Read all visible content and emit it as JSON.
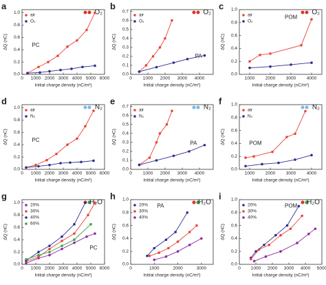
{
  "chart_data": [
    {
      "type": "scatter",
      "panel": "a",
      "material": "PC",
      "gas": "O₂",
      "xlabel": "Initial charge density (nC/m²)",
      "ylabel": "ΔQ (nC)",
      "xlim": [
        0,
        6000
      ],
      "xticks": [
        0,
        1000,
        2000,
        3000,
        4000,
        5000,
        6000
      ],
      "ylim": [
        0,
        1.05
      ],
      "yticks": [
        {
          "value": 0,
          "label": "0.0"
        },
        0.2,
        0.4,
        0.6,
        0.8,
        {
          "value": 1,
          "label": "1.0"
        }
      ],
      "series": [
        {
          "name": "air",
          "color": "#e8443a",
          "x": [
            400,
            1200,
            1900,
            2600,
            3300,
            4000,
            4700,
            5300
          ],
          "values": [
            0.02,
            0.12,
            0.2,
            0.3,
            0.45,
            0.55,
            0.72,
            1.0
          ]
        },
        {
          "name": "O₂",
          "color": "#2d2f8f",
          "x": [
            400,
            1300,
            2000,
            2800,
            3600,
            4400,
            5300
          ],
          "values": [
            0.02,
            0.03,
            0.05,
            0.07,
            0.09,
            0.12,
            0.14
          ]
        }
      ]
    },
    {
      "type": "scatter",
      "panel": "b",
      "material": "PA",
      "gas": "O₂",
      "xlabel": "Initial charge density (nC/m²)",
      "ylabel": "ΔQ (nC)",
      "xlim": [
        0,
        4800
      ],
      "xticks": [
        0,
        1000,
        2000,
        3000,
        4000
      ],
      "ylim": [
        0,
        0.72
      ],
      "yticks": [
        {
          "value": 0,
          "label": "0.0"
        },
        0.1,
        0.2,
        0.3,
        0.4,
        0.5,
        0.6,
        0.7
      ],
      "series": [
        {
          "name": "air",
          "color": "#e8443a",
          "x": [
            500,
            900,
            1300,
            1700,
            2000,
            2400
          ],
          "values": [
            0.03,
            0.1,
            0.2,
            0.3,
            0.4,
            0.6
          ]
        },
        {
          "name": "O₂",
          "color": "#2d2f8f",
          "x": [
            500,
            1500,
            2500,
            3300,
            4300
          ],
          "values": [
            0.03,
            0.08,
            0.13,
            0.17,
            0.21
          ]
        }
      ]
    },
    {
      "type": "scatter",
      "panel": "c",
      "material": "POM",
      "gas": "O₂",
      "xlabel": "Initial charge density (nC/m²)",
      "ylabel": "ΔQ (nC)",
      "xlim": [
        500,
        4500
      ],
      "xticks": [
        1000,
        2000,
        3000,
        4000
      ],
      "ylim": [
        0,
        1.0
      ],
      "yticks": [
        {
          "value": 0,
          "label": "0.0"
        },
        0.2,
        0.4,
        0.6,
        0.8,
        {
          "value": 1,
          "label": "1.0"
        }
      ],
      "series": [
        {
          "name": "air",
          "color": "#e8443a",
          "x": [
            1000,
            1500,
            2000,
            3500,
            4000
          ],
          "values": [
            0.2,
            0.3,
            0.32,
            0.45,
            0.85
          ]
        },
        {
          "name": "O₂",
          "color": "#2d2f8f",
          "x": [
            1000,
            2000,
            3000,
            4000
          ],
          "values": [
            0.1,
            0.12,
            0.15,
            0.18
          ]
        }
      ]
    },
    {
      "type": "scatter",
      "panel": "d",
      "material": "PC",
      "gas": "N₂",
      "xlabel": "Initial charge density (nC/m²)",
      "ylabel": "ΔQ (nC)",
      "xlim": [
        0,
        6000
      ],
      "xticks": [
        0,
        1000,
        2000,
        3000,
        4000,
        5000,
        6000
      ],
      "ylim": [
        0,
        1.05
      ],
      "yticks": [
        {
          "value": 0,
          "label": "0.0"
        },
        0.2,
        0.4,
        0.6,
        0.8,
        {
          "value": 1,
          "label": "1.0"
        }
      ],
      "series": [
        {
          "name": "air",
          "color": "#e8443a",
          "x": [
            300,
            1000,
            1800,
            2500,
            3300,
            4000,
            4600,
            5200
          ],
          "values": [
            0.03,
            0.07,
            0.15,
            0.25,
            0.4,
            0.5,
            0.7,
            0.95
          ]
        },
        {
          "name": "N₂",
          "color": "#2d2f8f",
          "x": [
            300,
            1200,
            2000,
            2800,
            3500,
            4300,
            5200
          ],
          "values": [
            0.03,
            0.05,
            0.07,
            0.1,
            0.11,
            0.12,
            0.14
          ]
        }
      ]
    },
    {
      "type": "scatter",
      "panel": "e",
      "material": "PA",
      "gas": "N₂",
      "xlabel": "Initial charge density (nC/m²)",
      "ylabel": "ΔQ (nC)",
      "xlim": [
        0,
        4800
      ],
      "xticks": [
        0,
        1000,
        2000,
        3000,
        4000
      ],
      "ylim": [
        0,
        0.72
      ],
      "yticks": [
        {
          "value": 0,
          "label": "0.0"
        },
        0.1,
        0.2,
        0.3,
        0.4,
        0.5,
        0.6,
        0.7
      ],
      "series": [
        {
          "name": "air",
          "color": "#e8443a",
          "x": [
            500,
            1100,
            1500,
            1700,
            2100,
            2400
          ],
          "values": [
            0.05,
            0.13,
            0.3,
            0.4,
            0.5,
            0.65
          ]
        },
        {
          "name": "N₂",
          "color": "#2d2f8f",
          "x": [
            500,
            1500,
            2500,
            3400,
            4300
          ],
          "values": [
            0.05,
            0.1,
            0.15,
            0.2,
            0.27
          ]
        }
      ]
    },
    {
      "type": "scatter",
      "panel": "f",
      "material": "POM",
      "gas": "N₂",
      "xlabel": "Initial charge density (nC/m²)",
      "ylabel": "ΔQ (nC)",
      "xlim": [
        500,
        4500
      ],
      "xticks": [
        1000,
        2000,
        3000,
        4000
      ],
      "ylim": [
        0,
        1.0
      ],
      "yticks": [
        {
          "value": 0,
          "label": "0.0"
        },
        0.2,
        0.4,
        0.6,
        0.8,
        {
          "value": 1,
          "label": "1.0"
        }
      ],
      "series": [
        {
          "name": "air",
          "color": "#e8443a",
          "x": [
            800,
            1200,
            2100,
            2800,
            3200,
            3700
          ],
          "values": [
            0.18,
            0.2,
            0.27,
            0.5,
            0.55,
            0.9
          ]
        },
        {
          "name": "N₂",
          "color": "#2d2f8f",
          "x": [
            800,
            1600,
            2400,
            3200,
            4000
          ],
          "values": [
            0.05,
            0.08,
            0.1,
            0.15,
            0.22
          ]
        }
      ]
    },
    {
      "type": "scatter",
      "panel": "g",
      "material": "PC",
      "gas": "H₂O",
      "xlabel": "Initial charge density (nC/m²)",
      "ylabel": "ΔQ (nC)",
      "xlim": [
        0,
        6000
      ],
      "xticks": [
        0,
        1000,
        2000,
        3000,
        4000,
        5000,
        6000
      ],
      "ylim": [
        0,
        1.05
      ],
      "yticks": [
        {
          "value": 0,
          "label": "0.0"
        },
        0.2,
        0.4,
        0.6,
        0.8,
        {
          "value": 1,
          "label": "1.0"
        }
      ],
      "series": [
        {
          "name": "20%",
          "color": "#8e2aa8",
          "x": [
            300,
            1200,
            2000,
            2900,
            3800,
            4700,
            5300
          ],
          "values": [
            0.02,
            0.1,
            0.15,
            0.25,
            0.35,
            0.45,
            0.5
          ]
        },
        {
          "name": "30%",
          "color": "#e8443a",
          "x": [
            300,
            1200,
            2000,
            2900,
            3800,
            4800,
            5300
          ],
          "values": [
            0.05,
            0.12,
            0.25,
            0.38,
            0.5,
            0.8,
            1.0
          ]
        },
        {
          "name": "40%",
          "color": "#2d2f8f",
          "x": [
            300,
            1200,
            2000,
            2900,
            3800,
            4600
          ],
          "values": [
            0.06,
            0.2,
            0.3,
            0.45,
            0.65,
            1.0
          ]
        },
        {
          "name": "60%",
          "color": "#3aa33a",
          "x": [
            300,
            1200,
            2000,
            2900,
            3800,
            5000
          ],
          "values": [
            0.08,
            0.15,
            0.2,
            0.3,
            0.4,
            0.65
          ]
        }
      ]
    },
    {
      "type": "scatter",
      "panel": "h",
      "material": "PA",
      "gas": "H₂O",
      "xlabel": "Initial charge density (nC/m²)",
      "ylabel": "ΔQ (nC)",
      "xlim": [
        0,
        3500
      ],
      "xticks": [
        0,
        1000,
        2000,
        3000
      ],
      "ylim": [
        0,
        1.0
      ],
      "yticks": [
        {
          "value": 0,
          "label": "0.0"
        },
        0.2,
        0.4,
        0.6,
        0.8,
        {
          "value": 1,
          "label": "1.0"
        }
      ],
      "series": [
        {
          "name": "20%",
          "color": "#2d2f8f",
          "x": [
            700,
            1000,
            1500,
            1900,
            2400
          ],
          "values": [
            0.13,
            0.25,
            0.38,
            0.5,
            0.8
          ]
        },
        {
          "name": "30%",
          "color": "#e8443a",
          "x": [
            800,
            1200,
            1600,
            2000,
            2500,
            2800
          ],
          "values": [
            0.13,
            0.18,
            0.25,
            0.35,
            0.5,
            0.6
          ]
        },
        {
          "name": "40%",
          "color": "#8e2aa8",
          "x": [
            1000,
            1500,
            2000,
            2500,
            3000
          ],
          "values": [
            0.07,
            0.12,
            0.2,
            0.3,
            0.4
          ]
        }
      ]
    },
    {
      "type": "scatter",
      "panel": "i",
      "material": "POM",
      "gas": "H₂O",
      "xlabel": "Initial charge density (nC/m²)",
      "ylabel": "ΔQ (nC)",
      "xlim": [
        0,
        5000
      ],
      "xticks": [
        0,
        1000,
        2000,
        3000,
        4000,
        5000
      ],
      "ylim": [
        0,
        1.0
      ],
      "yticks": [
        {
          "value": 0,
          "label": "0.0"
        },
        0.2,
        0.4,
        0.6,
        0.8,
        {
          "value": 1,
          "label": "1.0"
        }
      ],
      "series": [
        {
          "name": "20%",
          "color": "#2d2f8f",
          "x": [
            700,
            1000,
            1500,
            2200,
            2900,
            3600
          ],
          "values": [
            0.1,
            0.2,
            0.3,
            0.45,
            0.6,
            0.9
          ]
        },
        {
          "name": "30%",
          "color": "#e8443a",
          "x": [
            700,
            1200,
            1800,
            2500,
            3100,
            3800
          ],
          "values": [
            0.08,
            0.23,
            0.3,
            0.45,
            0.55,
            0.75
          ]
        },
        {
          "name": "40%",
          "color": "#8e2aa8",
          "x": [
            900,
            1600,
            2500,
            3500,
            4200,
            4600
          ],
          "values": [
            0.05,
            0.12,
            0.2,
            0.33,
            0.47,
            0.55
          ]
        }
      ]
    }
  ]
}
